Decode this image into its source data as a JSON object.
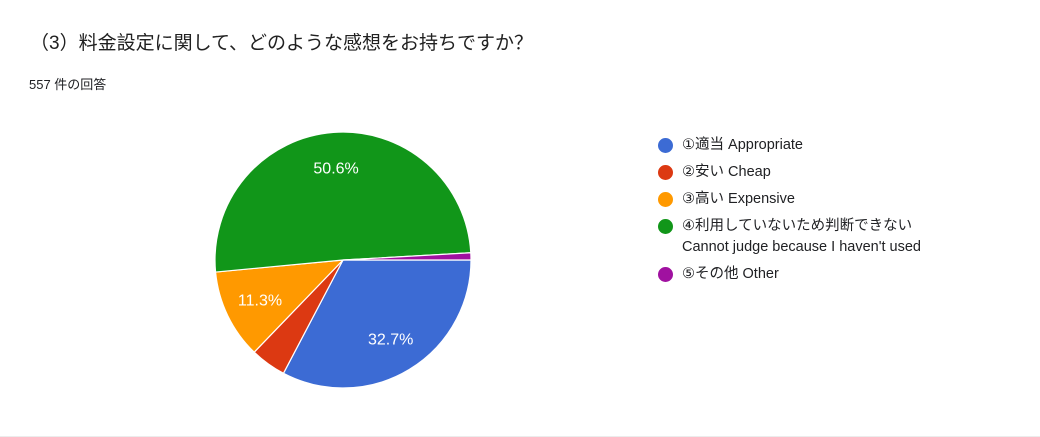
{
  "header": {
    "title": "（3）料金設定に関して、どのような感想をお持ちですか？",
    "responses_count": "557 件の回答"
  },
  "chart_data": {
    "type": "pie",
    "title": "（3）料金設定に関して、どのような感想をお持ちですか？",
    "subtitle": "557 件の回答",
    "total_responses": 557,
    "start_angle": "3-oclock",
    "direction": "clockwise",
    "legend_position": "right",
    "label_color": "#ffffff",
    "slices": [
      {
        "label": "①適当 Appropriate",
        "value_pct": 32.7,
        "displayed_label": "32.7%",
        "color": "#3C6BD4"
      },
      {
        "label": "②安い Cheap",
        "value_pct": 4.5,
        "displayed_label": null,
        "color": "#DC3912"
      },
      {
        "label": "③高い Expensive",
        "value_pct": 11.3,
        "displayed_label": "11.3%",
        "color": "#FF9900"
      },
      {
        "label": "④利用していないため判断できない Cannot judge because I haven't used",
        "value_pct": 50.6,
        "displayed_label": "50.6%",
        "color": "#119619"
      },
      {
        "label": "⑤その他 Other",
        "value_pct": 0.9,
        "displayed_label": null,
        "color": "#A011A0"
      }
    ]
  },
  "legend": {
    "items": [
      {
        "label": "①適当 Appropriate",
        "sublabel": null,
        "color": "#3C6BD4"
      },
      {
        "label": "②安い Cheap",
        "sublabel": null,
        "color": "#DC3912"
      },
      {
        "label": "③高い Expensive",
        "sublabel": null,
        "color": "#FF9900"
      },
      {
        "label": "④利用していないため判断できない",
        "sublabel": "Cannot judge because I haven't used",
        "color": "#119619"
      },
      {
        "label": "⑤その他 Other",
        "sublabel": null,
        "color": "#A011A0"
      }
    ]
  }
}
